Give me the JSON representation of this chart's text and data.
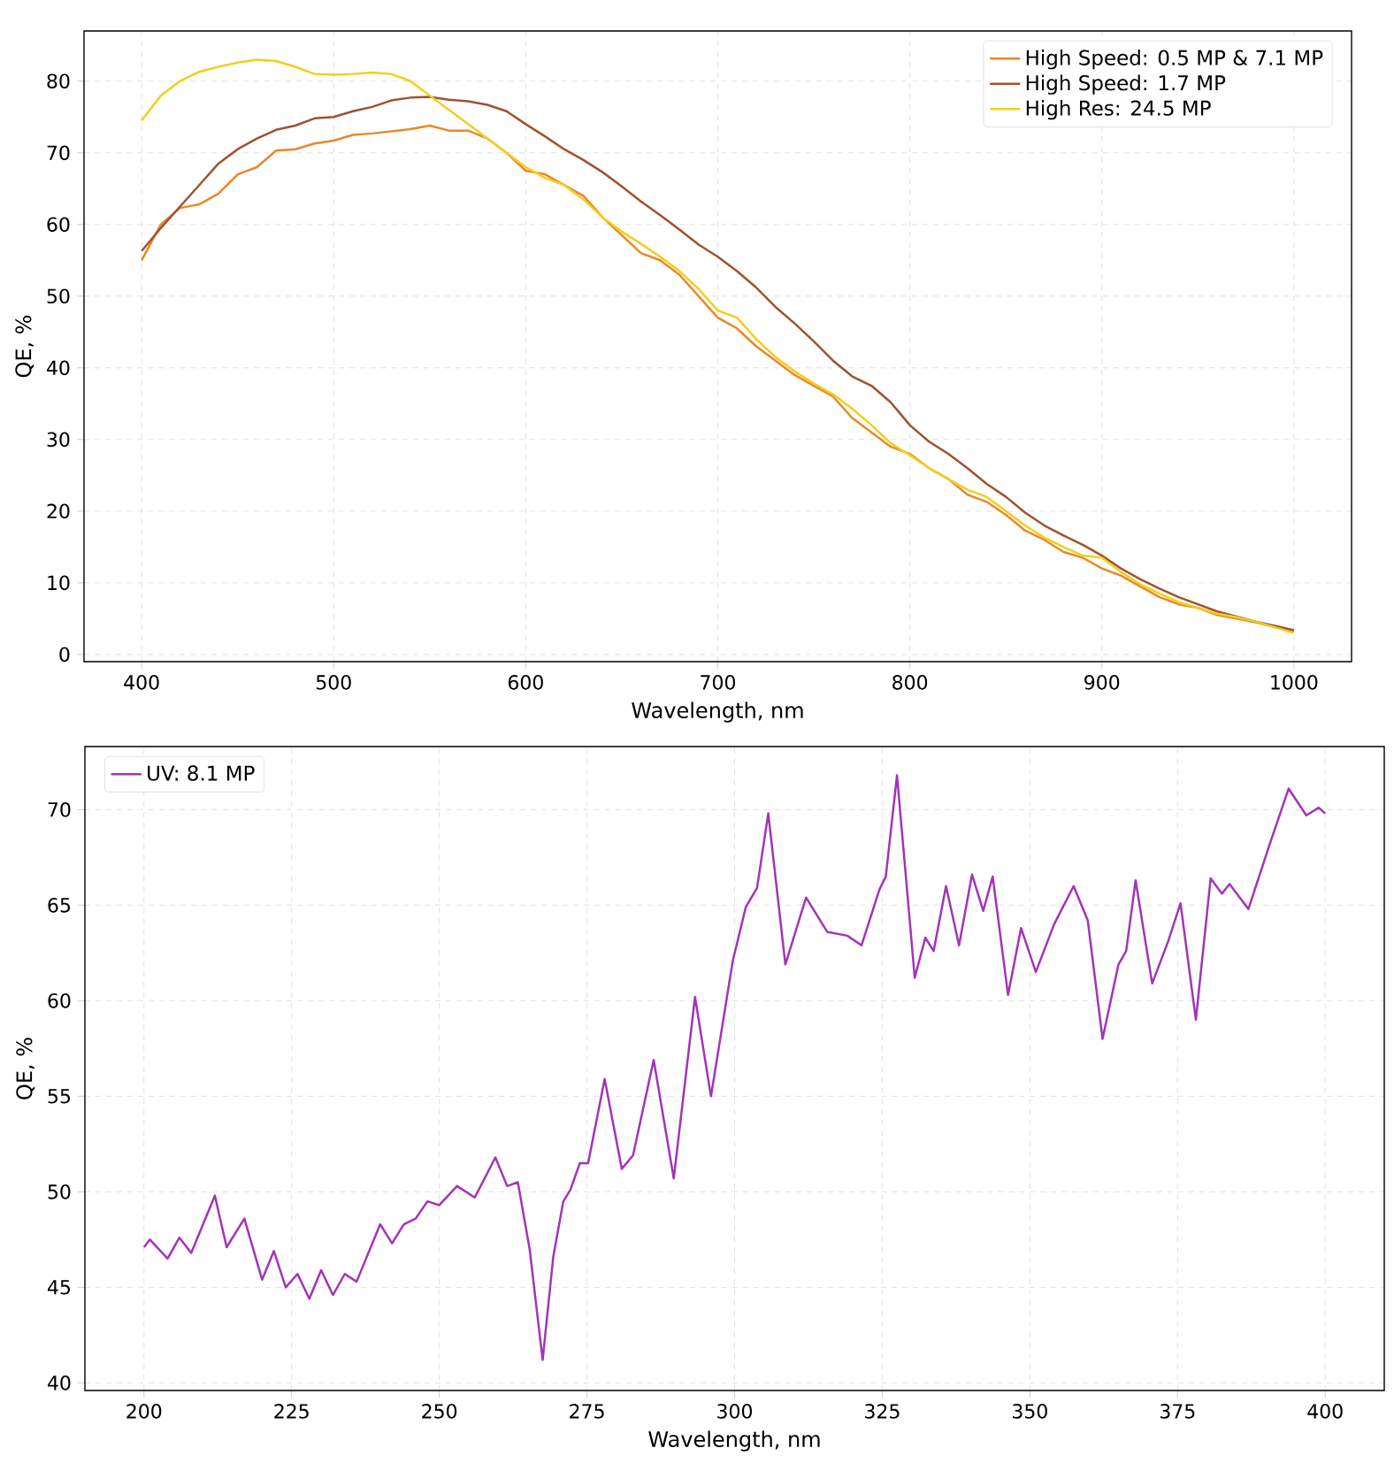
{
  "chart_data": [
    {
      "type": "line",
      "xlabel": "Wavelength, nm",
      "ylabel": "QE, %",
      "xlim": [
        370,
        1030
      ],
      "ylim": [
        -1,
        87
      ],
      "xticks": [
        400,
        500,
        600,
        700,
        800,
        900,
        1000
      ],
      "yticks": [
        0,
        10,
        20,
        30,
        40,
        50,
        60,
        70,
        80
      ],
      "grid": true,
      "legend": "top right",
      "marker": "none",
      "line_style": "solid",
      "x": [
        400,
        410,
        420,
        430,
        440,
        450,
        460,
        470,
        480,
        490,
        500,
        510,
        520,
        530,
        540,
        550,
        560,
        570,
        580,
        590,
        600,
        610,
        620,
        630,
        640,
        650,
        660,
        670,
        680,
        690,
        700,
        710,
        720,
        730,
        740,
        750,
        760,
        770,
        780,
        790,
        800,
        810,
        820,
        830,
        840,
        850,
        860,
        870,
        880,
        890,
        900,
        910,
        920,
        930,
        940,
        950,
        960,
        970,
        980,
        990,
        1000
      ],
      "series": [
        {
          "name": "High Speed: 0.5 MP & 7.1 MP",
          "color": "#e8892a",
          "values": [
            55,
            60,
            62.3,
            62.8,
            64.3,
            67,
            68,
            70.3,
            70.5,
            71.3,
            71.7,
            72.5,
            72.7,
            73,
            73.3,
            73.8,
            73.1,
            73.1,
            72,
            70,
            67.5,
            67,
            65.5,
            64,
            61,
            58.5,
            56,
            55,
            53,
            50,
            47,
            45.5,
            43,
            41,
            39,
            37.5,
            36,
            33,
            31,
            29,
            28,
            26,
            24.5,
            22.3,
            21.3,
            19.5,
            17.3,
            16,
            14.3,
            13.5,
            12,
            11,
            9.5,
            8,
            7,
            6.5,
            5.5,
            5,
            4.5,
            3.8,
            3.2
          ]
        },
        {
          "name": "High Speed: 1.7 MP",
          "color": "#a0522d",
          "values": [
            56.3,
            59.5,
            62.5,
            65.5,
            68.5,
            70.5,
            72,
            73.2,
            73.8,
            74.8,
            75,
            75.8,
            76.4,
            77.3,
            77.7,
            77.8,
            77.4,
            77.2,
            76.7,
            75.8,
            74,
            72.3,
            70.5,
            69,
            67.3,
            65.3,
            63.2,
            61.3,
            59.3,
            57.2,
            55.5,
            53.5,
            51.2,
            48.5,
            46.2,
            43.7,
            41,
            38.8,
            37.5,
            35.2,
            32,
            29.7,
            28,
            26,
            23.8,
            22,
            19.8,
            18,
            16.6,
            15.3,
            13.8,
            12,
            10.5,
            9.2,
            8,
            7,
            6,
            5.3,
            4.6,
            4,
            3.4
          ]
        },
        {
          "name": "High Res: 24.5 MP",
          "color": "#f2cf1d",
          "values": [
            74.5,
            78,
            80,
            81.3,
            82,
            82.6,
            83,
            82.8,
            82,
            81,
            80.9,
            81,
            81.2,
            81,
            80,
            78,
            76,
            74,
            72,
            70,
            68,
            66.5,
            65.5,
            63.5,
            61,
            59,
            57.3,
            55.5,
            53.5,
            51,
            48,
            47,
            44,
            41.5,
            39.5,
            37.8,
            36.3,
            34.3,
            32,
            29.5,
            27.8,
            26,
            24.5,
            23,
            22,
            20,
            18,
            16.3,
            15,
            13.8,
            13.5,
            11.5,
            9.8,
            8.5,
            7.3,
            6.5,
            5.7,
            5.2,
            4.6,
            3.8,
            3
          ]
        }
      ]
    },
    {
      "type": "line",
      "xlabel": "Wavelength, nm",
      "ylabel": "QE, %",
      "xlim": [
        190,
        410
      ],
      "ylim": [
        39.6,
        73.3
      ],
      "xticks": [
        200,
        225,
        250,
        275,
        300,
        325,
        350,
        375,
        400
      ],
      "yticks": [
        40,
        45,
        50,
        55,
        60,
        65,
        70
      ],
      "grid": true,
      "legend": "top left",
      "marker": "none",
      "line_style": "solid",
      "x": [
        200,
        201,
        204,
        206,
        208,
        212,
        214,
        217,
        220,
        222,
        224,
        226,
        228,
        230,
        232,
        234,
        236,
        240,
        242,
        244,
        246,
        248,
        250,
        253,
        256,
        259.5,
        261.5,
        263.3,
        265.3,
        267.5,
        269.3,
        271,
        272.2,
        273.8,
        275.2,
        278,
        280.9,
        282.8,
        286.3,
        289.7,
        293.3,
        296,
        299.7,
        301.9,
        303.8,
        305.7,
        308.6,
        312.1,
        315.7,
        319.1,
        321.5,
        324.5,
        325.6,
        327.5,
        330.5,
        332.3,
        333.7,
        335.8,
        338,
        340.2,
        342.1,
        343.7,
        346.3,
        348.5,
        351,
        354.1,
        357.4,
        359.8,
        362.3,
        365,
        366.3,
        367.9,
        370.7,
        373.4,
        375.5,
        378.1,
        380.6,
        382.5,
        383.8,
        387,
        390.5,
        393.8,
        396.8,
        398.9,
        400
      ],
      "series": [
        {
          "name": "UV: 8.1 MP",
          "color": "#a334b8",
          "values": [
            47.1,
            47.5,
            46.5,
            47.6,
            46.8,
            49.8,
            47.1,
            48.6,
            45.4,
            46.9,
            45,
            45.7,
            44.4,
            45.9,
            44.6,
            45.7,
            45.3,
            48.3,
            47.3,
            48.3,
            48.6,
            49.5,
            49.3,
            50.3,
            49.7,
            51.8,
            50.3,
            50.5,
            47,
            41.2,
            46.6,
            49.5,
            50.1,
            51.5,
            51.5,
            55.9,
            51.2,
            51.9,
            56.9,
            50.7,
            60.2,
            55,
            62.1,
            64.9,
            65.9,
            69.8,
            61.9,
            65.4,
            63.6,
            63.4,
            62.9,
            65.8,
            66.5,
            71.8,
            61.2,
            63.3,
            62.6,
            66,
            62.9,
            66.6,
            64.7,
            66.5,
            60.3,
            63.8,
            61.5,
            64,
            66,
            64.2,
            58,
            61.9,
            62.6,
            66.3,
            60.9,
            63.1,
            65.1,
            59,
            66.4,
            65.6,
            66.1,
            64.8,
            68.1,
            71.1,
            69.7,
            70.1,
            69.8
          ]
        }
      ]
    }
  ]
}
